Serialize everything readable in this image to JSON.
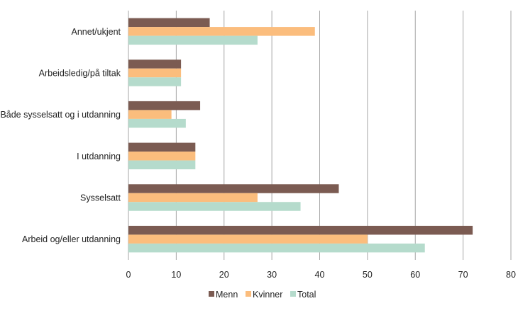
{
  "chart_data": {
    "type": "bar",
    "orientation": "horizontal",
    "categories": [
      "Annet/ukjent",
      "Arbeidsledig/på tiltak",
      "Både sysselsatt og i utdanning",
      "I utdanning",
      "Sysselsatt",
      "Arbeid og/eller utdanning"
    ],
    "series": [
      {
        "name": "Menn",
        "color": "#7b5b52",
        "values": [
          17,
          11,
          15,
          14,
          44,
          72
        ]
      },
      {
        "name": "Kvinner",
        "color": "#fbbd7d",
        "values": [
          39,
          11,
          9,
          14,
          27,
          50
        ]
      },
      {
        "name": "Total",
        "color": "#b5dbcc",
        "values": [
          27,
          11,
          12,
          14,
          36,
          62
        ]
      }
    ],
    "xlim": [
      0,
      80
    ],
    "xticks": [
      0,
      10,
      20,
      30,
      40,
      50,
      60,
      70,
      80
    ],
    "title": "",
    "xlabel": "",
    "ylabel": "",
    "grid": "vertical",
    "legend_position": "bottom-center",
    "gridline_color": "#a6a6a6"
  }
}
